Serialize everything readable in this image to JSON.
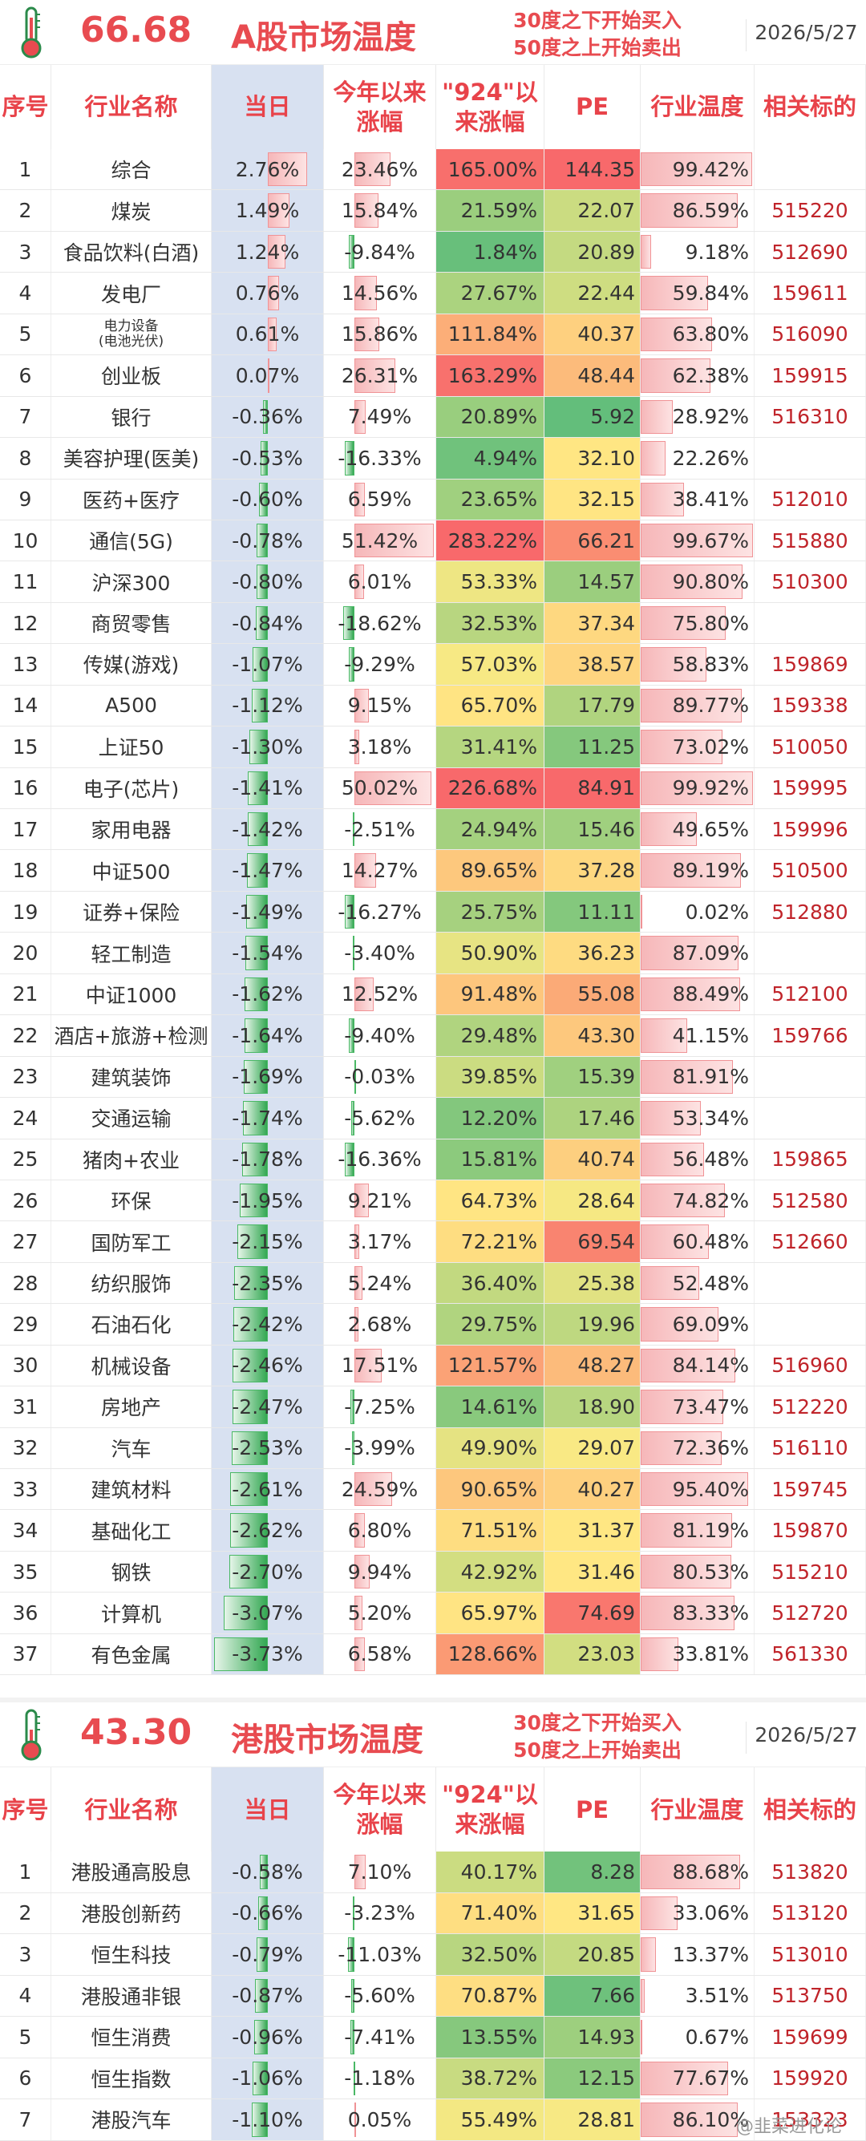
{
  "a_section": {
    "temperature": "66.68",
    "title": "A股市场温度",
    "rule_buy": "30度之下开始买入",
    "rule_sell": "50度之上开始卖出",
    "date": "2026/5/27"
  },
  "hk_section": {
    "temperature": "43.30",
    "title": "港股市场温度",
    "rule_buy": "30度之下开始买入",
    "rule_sell": "50度之上开始卖出",
    "date": "2026/5/27"
  },
  "columns": {
    "no": "序号",
    "name": "行业名称",
    "day": "当日",
    "ytd": "今年以来涨幅",
    "since924": "\"924\"以来涨幅",
    "pe": "PE",
    "ind_temp": "行业温度",
    "code": "相关标的"
  },
  "colors": {
    "accent": "#e84b50",
    "code": "#c0242a",
    "day_bg": "#d8e1f1"
  },
  "a_rows": [
    {
      "no": "1",
      "name": "综合",
      "day": 2.76,
      "ytd": 23.46,
      "s924": 165.0,
      "pe": 144.35,
      "temp": 99.42,
      "code": ""
    },
    {
      "no": "2",
      "name": "煤炭",
      "day": 1.49,
      "ytd": 15.84,
      "s924": 21.59,
      "pe": 22.07,
      "temp": 86.59,
      "code": "515220"
    },
    {
      "no": "3",
      "name": "食品饮料(白酒)",
      "day": 1.24,
      "ytd": -9.84,
      "s924": 1.84,
      "pe": 20.89,
      "temp": 9.18,
      "code": "512690"
    },
    {
      "no": "4",
      "name": "发电厂",
      "day": 0.76,
      "ytd": 14.56,
      "s924": 27.67,
      "pe": 22.44,
      "temp": 59.84,
      "code": "159611"
    },
    {
      "no": "5",
      "name": "电力设备",
      "name2": "(电池光伏)",
      "day": 0.61,
      "ytd": 15.86,
      "s924": 111.84,
      "pe": 40.37,
      "temp": 63.8,
      "code": "516090"
    },
    {
      "no": "6",
      "name": "创业板",
      "day": 0.07,
      "ytd": 26.31,
      "s924": 163.29,
      "pe": 48.44,
      "temp": 62.38,
      "code": "159915"
    },
    {
      "no": "7",
      "name": "银行",
      "day": -0.36,
      "ytd": 7.49,
      "s924": 20.89,
      "pe": 5.92,
      "temp": 28.92,
      "code": "516310"
    },
    {
      "no": "8",
      "name": "美容护理(医美)",
      "day": -0.53,
      "ytd": -16.33,
      "s924": 4.94,
      "pe": 32.1,
      "temp": 22.26,
      "code": ""
    },
    {
      "no": "9",
      "name": "医药+医疗",
      "day": -0.6,
      "ytd": 6.59,
      "s924": 23.65,
      "pe": 32.15,
      "temp": 38.41,
      "code": "512010"
    },
    {
      "no": "10",
      "name": "通信(5G)",
      "day": -0.78,
      "ytd": 51.42,
      "s924": 283.22,
      "pe": 66.21,
      "temp": 99.67,
      "code": "515880"
    },
    {
      "no": "11",
      "name": "沪深300",
      "day": -0.8,
      "ytd": 6.01,
      "s924": 53.33,
      "pe": 14.57,
      "temp": 90.8,
      "code": "510300"
    },
    {
      "no": "12",
      "name": "商贸零售",
      "day": -0.84,
      "ytd": -18.62,
      "s924": 32.53,
      "pe": 37.34,
      "temp": 75.8,
      "code": ""
    },
    {
      "no": "13",
      "name": "传媒(游戏)",
      "day": -1.07,
      "ytd": -9.29,
      "s924": 57.03,
      "pe": 38.57,
      "temp": 58.83,
      "code": "159869"
    },
    {
      "no": "14",
      "name": "A500",
      "day": -1.12,
      "ytd": 9.15,
      "s924": 65.7,
      "pe": 17.79,
      "temp": 89.77,
      "code": "159338"
    },
    {
      "no": "15",
      "name": "上证50",
      "day": -1.3,
      "ytd": 3.18,
      "s924": 31.41,
      "pe": 11.25,
      "temp": 73.02,
      "code": "510050"
    },
    {
      "no": "16",
      "name": "电子(芯片)",
      "day": -1.41,
      "ytd": 50.02,
      "s924": 226.68,
      "pe": 84.91,
      "temp": 99.92,
      "code": "159995"
    },
    {
      "no": "17",
      "name": "家用电器",
      "day": -1.42,
      "ytd": -2.51,
      "s924": 24.94,
      "pe": 15.46,
      "temp": 49.65,
      "code": "159996"
    },
    {
      "no": "18",
      "name": "中证500",
      "day": -1.47,
      "ytd": 14.27,
      "s924": 89.65,
      "pe": 37.28,
      "temp": 89.19,
      "code": "510500"
    },
    {
      "no": "19",
      "name": "证券+保险",
      "day": -1.49,
      "ytd": -16.27,
      "s924": 25.75,
      "pe": 11.11,
      "temp": 0.02,
      "code": "512880"
    },
    {
      "no": "20",
      "name": "轻工制造",
      "day": -1.54,
      "ytd": -3.4,
      "s924": 50.9,
      "pe": 36.23,
      "temp": 87.09,
      "code": ""
    },
    {
      "no": "21",
      "name": "中证1000",
      "day": -1.62,
      "ytd": 12.52,
      "s924": 91.48,
      "pe": 55.08,
      "temp": 88.49,
      "code": "512100"
    },
    {
      "no": "22",
      "name": "酒店+旅游+检测",
      "day": -1.64,
      "ytd": -9.4,
      "s924": 29.48,
      "pe": 43.3,
      "temp": 41.15,
      "code": "159766"
    },
    {
      "no": "23",
      "name": "建筑装饰",
      "day": -1.69,
      "ytd": -0.03,
      "s924": 39.85,
      "pe": 15.39,
      "temp": 81.91,
      "code": ""
    },
    {
      "no": "24",
      "name": "交通运输",
      "day": -1.74,
      "ytd": -5.62,
      "s924": 12.2,
      "pe": 17.46,
      "temp": 53.34,
      "code": ""
    },
    {
      "no": "25",
      "name": "猪肉+农业",
      "day": -1.78,
      "ytd": -16.36,
      "s924": 15.81,
      "pe": 40.74,
      "temp": 56.48,
      "code": "159865"
    },
    {
      "no": "26",
      "name": "环保",
      "day": -1.95,
      "ytd": 9.21,
      "s924": 64.73,
      "pe": 28.64,
      "temp": 74.82,
      "code": "512580"
    },
    {
      "no": "27",
      "name": "国防军工",
      "day": -2.15,
      "ytd": 3.17,
      "s924": 72.21,
      "pe": 69.54,
      "temp": 60.48,
      "code": "512660"
    },
    {
      "no": "28",
      "name": "纺织服饰",
      "day": -2.35,
      "ytd": 5.24,
      "s924": 36.4,
      "pe": 25.38,
      "temp": 52.48,
      "code": ""
    },
    {
      "no": "29",
      "name": "石油石化",
      "day": -2.42,
      "ytd": 2.68,
      "s924": 29.75,
      "pe": 19.96,
      "temp": 69.09,
      "code": ""
    },
    {
      "no": "30",
      "name": "机械设备",
      "day": -2.46,
      "ytd": 17.51,
      "s924": 121.57,
      "pe": 48.27,
      "temp": 84.14,
      "code": "516960"
    },
    {
      "no": "31",
      "name": "房地产",
      "day": -2.47,
      "ytd": -7.25,
      "s924": 14.61,
      "pe": 18.9,
      "temp": 73.47,
      "code": "512220"
    },
    {
      "no": "32",
      "name": "汽车",
      "day": -2.53,
      "ytd": -3.99,
      "s924": 49.9,
      "pe": 29.07,
      "temp": 72.36,
      "code": "516110"
    },
    {
      "no": "33",
      "name": "建筑材料",
      "day": -2.61,
      "ytd": 24.59,
      "s924": 90.65,
      "pe": 40.27,
      "temp": 95.4,
      "code": "159745"
    },
    {
      "no": "34",
      "name": "基础化工",
      "day": -2.62,
      "ytd": 6.8,
      "s924": 71.51,
      "pe": 31.37,
      "temp": 81.19,
      "code": "159870"
    },
    {
      "no": "35",
      "name": "钢铁",
      "day": -2.7,
      "ytd": 9.94,
      "s924": 42.92,
      "pe": 31.46,
      "temp": 80.53,
      "code": "515210"
    },
    {
      "no": "36",
      "name": "计算机",
      "day": -3.07,
      "ytd": 5.2,
      "s924": 65.97,
      "pe": 74.69,
      "temp": 83.33,
      "code": "512720"
    },
    {
      "no": "37",
      "name": "有色金属",
      "day": -3.73,
      "ytd": 6.58,
      "s924": 128.66,
      "pe": 23.03,
      "temp": 33.81,
      "code": "561330"
    }
  ],
  "hk_rows": [
    {
      "no": "1",
      "name": "港股通高股息",
      "day": -0.58,
      "ytd": 7.1,
      "s924": 40.17,
      "pe": 8.28,
      "temp": 88.68,
      "code": "513820"
    },
    {
      "no": "2",
      "name": "港股创新药",
      "day": -0.66,
      "ytd": -3.23,
      "s924": 71.4,
      "pe": 31.65,
      "temp": 33.06,
      "code": "513120"
    },
    {
      "no": "3",
      "name": "恒生科技",
      "day": -0.79,
      "ytd": -11.03,
      "s924": 32.5,
      "pe": 20.85,
      "temp": 13.37,
      "code": "513010"
    },
    {
      "no": "4",
      "name": "港股通非银",
      "day": -0.87,
      "ytd": -5.6,
      "s924": 70.87,
      "pe": 7.66,
      "temp": 3.51,
      "code": "513750"
    },
    {
      "no": "5",
      "name": "恒生消费",
      "day": -0.96,
      "ytd": -7.41,
      "s924": 13.55,
      "pe": 14.93,
      "temp": 0.67,
      "code": "159699"
    },
    {
      "no": "6",
      "name": "恒生指数",
      "day": -1.06,
      "ytd": -1.18,
      "s924": 38.72,
      "pe": 12.15,
      "temp": 77.67,
      "code": "159920"
    },
    {
      "no": "7",
      "name": "港股汽车",
      "day": -1.1,
      "ytd": 0.05,
      "s924": 55.49,
      "pe": 28.81,
      "temp": 86.1,
      "code": "153323"
    }
  ],
  "watermark": "@韭菜进化论"
}
